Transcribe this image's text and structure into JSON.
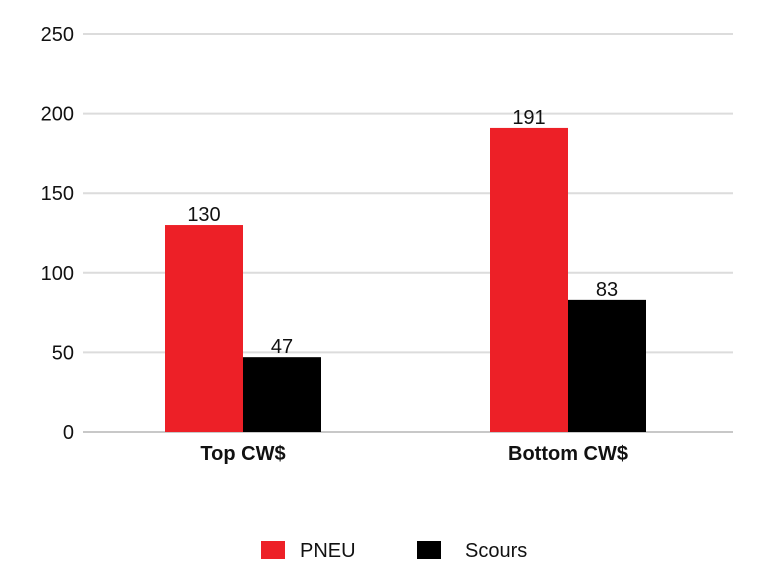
{
  "chart_data": {
    "type": "bar",
    "categories": [
      "Top CW$",
      "Bottom CW$"
    ],
    "series": [
      {
        "name": "PNEU",
        "values": [
          130,
          191
        ],
        "color": "#ed2027"
      },
      {
        "name": "Scours",
        "values": [
          47,
          83
        ],
        "color": "#000000"
      }
    ],
    "ylim": [
      0,
      250
    ],
    "yticks": [
      "0",
      "50",
      "100",
      "150",
      "200",
      "250"
    ],
    "ytick_values": [
      0,
      50,
      100,
      150,
      200,
      250
    ],
    "grid": true,
    "legend": "bottom-center",
    "data_labels": [
      [
        "130",
        "191"
      ],
      [
        "47",
        "83"
      ]
    ]
  }
}
